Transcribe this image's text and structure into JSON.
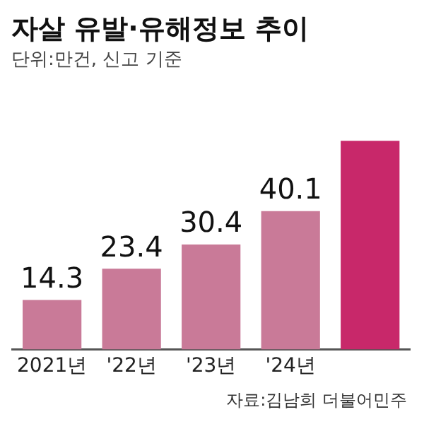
{
  "chart_data": {
    "type": "bar",
    "title": "자살 유발·유해정보 추이",
    "subtitle": "단위:만건, 신고 기준",
    "categories": [
      "2021년",
      "'22년",
      "'23년",
      "'24년",
      null
    ],
    "values": [
      14.3,
      23.4,
      30.4,
      40.1,
      60.5
    ],
    "colors": [
      "#c97a98",
      "#c97a98",
      "#c97a98",
      "#c97a98",
      "#c8286a"
    ],
    "value_labels": [
      "14.3",
      "23.4",
      "30.4",
      "40.1",
      null
    ],
    "annotations": [
      "자료:김남희 더불어민주"
    ],
    "grid": false,
    "legend": false
  }
}
